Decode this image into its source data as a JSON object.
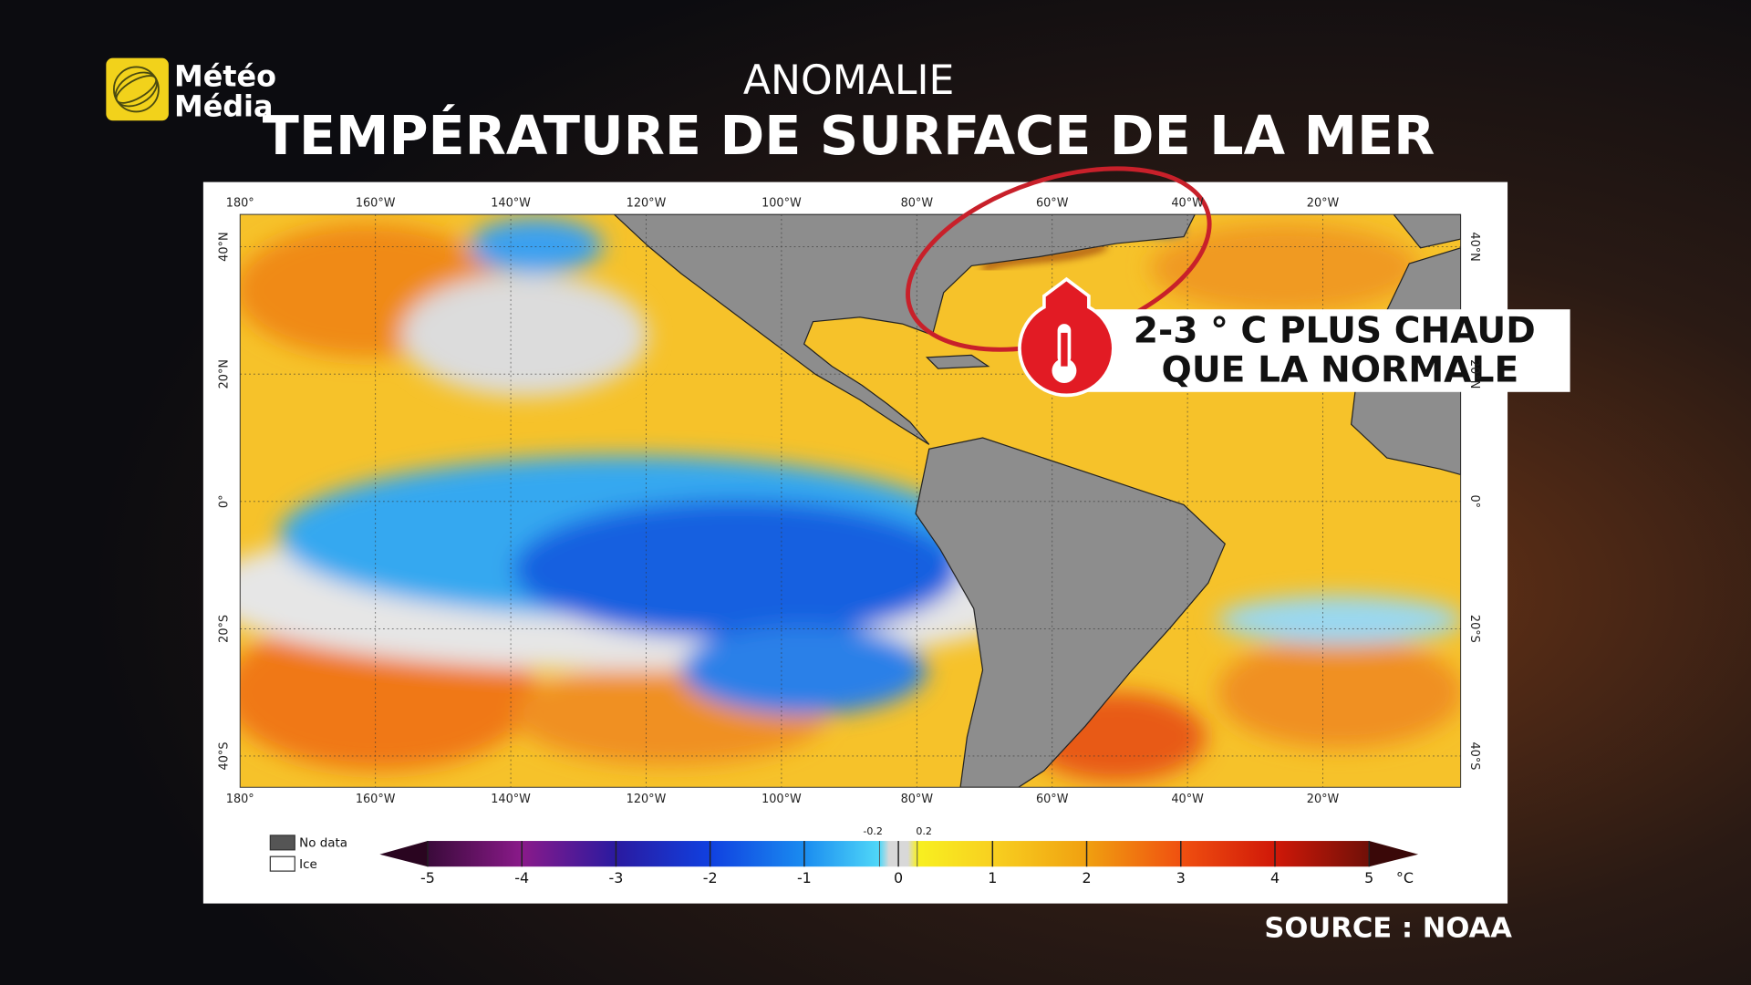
{
  "logo": {
    "line1": "Météo",
    "line2": "Média"
  },
  "header": {
    "kicker": "ANOMALIE",
    "title": "TEMPÉRATURE DE SURFACE DE LA MER"
  },
  "map": {
    "longitude_labels": [
      "180°",
      "160°W",
      "140°W",
      "120°W",
      "100°W",
      "80°W",
      "60°W",
      "40°W",
      "20°W"
    ],
    "latitude_labels": [
      "40°N",
      "20°N",
      "0°",
      "20°S",
      "40°S"
    ]
  },
  "legend": {
    "no_data": "No data",
    "ice": "Ice"
  },
  "colorbar": {
    "ticks": [
      -5,
      -4,
      -3,
      -2,
      -1,
      0,
      1,
      2,
      3,
      4,
      5
    ],
    "inner_ticks": [
      -0.2,
      0.2
    ],
    "unit": "°C"
  },
  "callout": {
    "line1": "2-3 ° C PLUS CHAUD",
    "line2": "QUE LA NORMALE"
  },
  "source": "SOURCE : NOAA"
}
